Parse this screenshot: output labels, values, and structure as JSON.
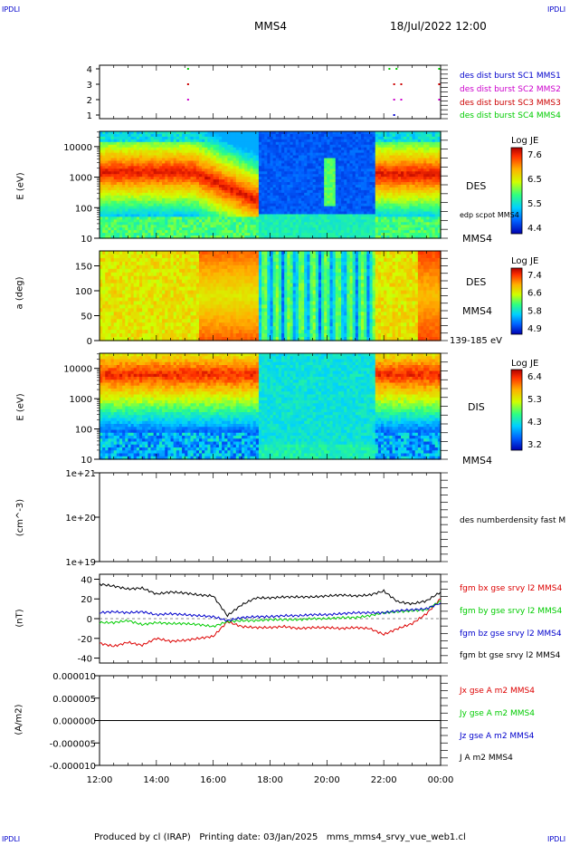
{
  "header": {
    "corner_label": "IPDLI",
    "spacecraft": "MMS4",
    "datetime": "18/Jul/2022 12:00"
  },
  "footer": {
    "text": "Produced by cl (IRAP)   Printing date: 03/Jan/2025   mms_mms4_srvy_vue_web1.cl"
  },
  "colors": {
    "mms1": "#0000cc",
    "mms2": "#cc00cc",
    "mms3": "#cc0000",
    "mms4": "#00cc00",
    "bx": "#dd0000",
    "by": "#00cc00",
    "bz": "#0000cc",
    "bt": "#000000"
  },
  "chart_data": [
    {
      "type": "scatter",
      "panel": "burst-availability",
      "yticks": [
        "1",
        "2",
        "3",
        "4"
      ],
      "legend": [
        "des dist burst SC1 MMS1",
        "des dist burst SC2 MMS2",
        "des dist burst SC3 MMS3",
        "des dist burst SC4 MMS4"
      ],
      "series": [
        {
          "name": "des dist burst SC1 MMS1",
          "y": 1,
          "x": [
            "22:20"
          ]
        },
        {
          "name": "des dist burst SC2 MMS2",
          "y": 2,
          "x": [
            "15:05",
            "22:20",
            "22:35",
            "23:55"
          ]
        },
        {
          "name": "des dist burst SC3 MMS3",
          "y": 3,
          "x": [
            "15:05",
            "22:20",
            "22:35",
            "23:55"
          ]
        },
        {
          "name": "des dist burst SC4 MMS4",
          "y": 4,
          "x": [
            "15:05",
            "22:10",
            "22:25",
            "23:55"
          ]
        }
      ]
    },
    {
      "type": "heatmap",
      "panel": "des-energy",
      "ylabel": "E (eV)",
      "yticks": [
        "10",
        "100",
        "1000",
        "10000"
      ],
      "scale": "log",
      "instrument": "DES",
      "overlay_label": "edp scpot MMS4",
      "right_label": "MMS4",
      "colorbar": {
        "title": "Log JE",
        "ticks": [
          "7.6",
          "6.5",
          "5.5",
          "4.4"
        ]
      }
    },
    {
      "type": "heatmap",
      "panel": "des-pitch-angle",
      "ylabel": "a (deg)",
      "yticks": [
        "0",
        "50",
        "100",
        "150"
      ],
      "instrument": "DES",
      "right_label": "MMS4",
      "energy_range": "139-185 eV",
      "colorbar": {
        "title": "Log JE",
        "ticks": [
          "7.4",
          "6.6",
          "5.8",
          "4.9"
        ]
      }
    },
    {
      "type": "heatmap",
      "panel": "dis-energy",
      "ylabel": "E (eV)",
      "yticks": [
        "10",
        "100",
        "1000",
        "10000"
      ],
      "scale": "log",
      "instrument": "DIS",
      "right_label": "MMS4",
      "colorbar": {
        "title": "Log JE",
        "ticks": [
          "6.4",
          "5.3",
          "4.3",
          "3.2"
        ]
      }
    },
    {
      "type": "line",
      "panel": "density",
      "ylabel": "(cm^-3)",
      "yticks": [
        "1e+19",
        "1e+20",
        "1e+21"
      ],
      "scale": "log",
      "legend": [
        "des numberdensity fast M"
      ],
      "series": []
    },
    {
      "type": "line",
      "panel": "magnetic-field",
      "ylabel": "(nT)",
      "ylim": [
        -45,
        45
      ],
      "yticks": [
        "-40",
        "-20",
        "0",
        "20",
        "40"
      ],
      "legend": [
        "fgm bx gse srvy l2 MMS4",
        "fgm by gse srvy l2 MMS4",
        "fgm bz gse srvy l2 MMS4",
        "fgm bt gse srvy l2 MMS4"
      ],
      "x": [
        0,
        0.5,
        1,
        1.5,
        2,
        2.5,
        3,
        3.5,
        4,
        4.5,
        5,
        5.5,
        6,
        6.5,
        7,
        7.5,
        8,
        8.5,
        9,
        9.5,
        10,
        10.5,
        11,
        11.5,
        12
      ],
      "series": [
        {
          "name": "fgm bx gse srvy l2 MMS4",
          "values": [
            -25,
            -28,
            -24,
            -27,
            -20,
            -23,
            -22,
            -20,
            -18,
            -3,
            -8,
            -9,
            -9,
            -8,
            -10,
            -9,
            -9,
            -10,
            -9,
            -10,
            -16,
            -10,
            -5,
            5,
            20
          ]
        },
        {
          "name": "fgm by gse srvy l2 MMS4",
          "values": [
            -4,
            -4,
            -2,
            -6,
            -4,
            -5,
            -5,
            -6,
            -8,
            -3,
            -2,
            -2,
            -1,
            -1,
            -1,
            0,
            0,
            1,
            1,
            3,
            6,
            7,
            8,
            9,
            18
          ]
        },
        {
          "name": "fgm bz gse srvy l2 MMS4",
          "values": [
            6,
            7,
            6,
            7,
            4,
            5,
            4,
            3,
            2,
            -2,
            1,
            2,
            2,
            3,
            3,
            4,
            4,
            5,
            6,
            6,
            6,
            8,
            9,
            10,
            16
          ]
        },
        {
          "name": "fgm bt gse srvy l2 MMS4",
          "values": [
            35,
            33,
            30,
            31,
            25,
            27,
            26,
            24,
            23,
            3,
            14,
            21,
            21,
            22,
            22,
            22,
            23,
            24,
            23,
            24,
            28,
            17,
            15,
            18,
            27
          ]
        }
      ]
    },
    {
      "type": "line",
      "panel": "current-density",
      "ylabel": "(A/m2)",
      "ylim": [
        -1e-05,
        1e-05
      ],
      "yticks": [
        "-0.000010",
        "-0.000005",
        "0.000000",
        "0.000005",
        "0.000010"
      ],
      "legend": [
        "Jx gse A m2 MMS4",
        "Jy gse A m2 MMS4",
        "Jz gse A m2 MMS4",
        "J A m2 MMS4"
      ],
      "series": [
        {
          "name": "J A m2 MMS4",
          "values": [
            0,
            0,
            0,
            0,
            0,
            0,
            0,
            0,
            0,
            0,
            0,
            0,
            0
          ]
        }
      ]
    }
  ],
  "time_axis": {
    "ticks": [
      "12:00",
      "14:00",
      "16:00",
      "18:00",
      "20:00",
      "22:00",
      "00:00"
    ],
    "range_hours": [
      0,
      12
    ]
  }
}
